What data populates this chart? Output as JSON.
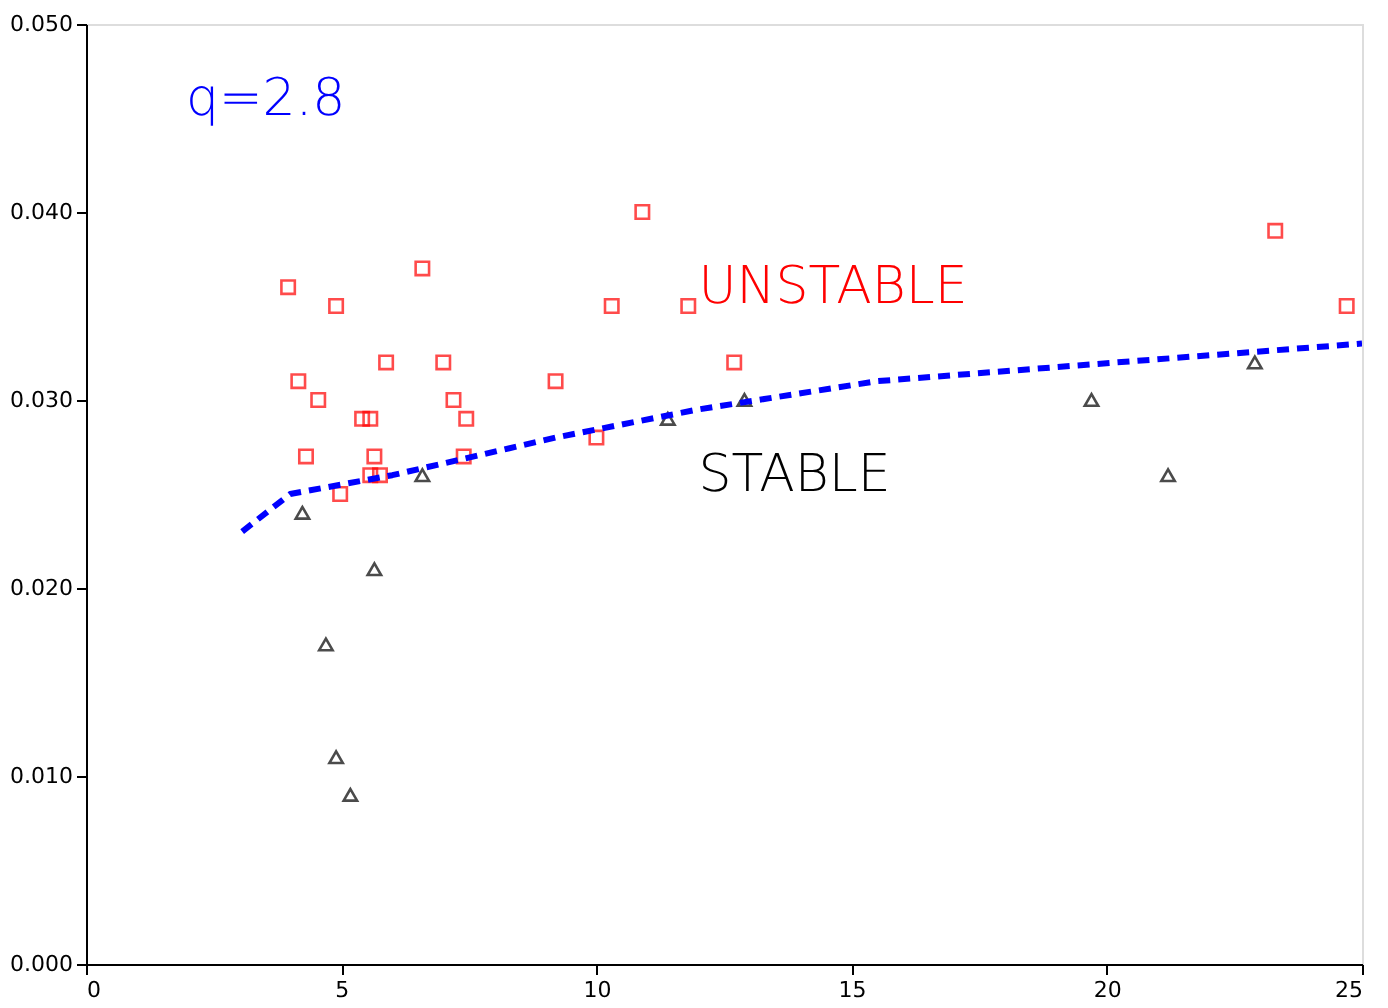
{
  "chart_data": {
    "type": "scatter",
    "xlim": [
      0,
      25
    ],
    "ylim": [
      0,
      0.05
    ],
    "xticks": [
      0,
      5,
      10,
      15,
      20,
      25
    ],
    "yticks": [
      {
        "value": 0,
        "label": "0.000"
      },
      {
        "value": 0.01,
        "label": "0.010"
      },
      {
        "value": 0.02,
        "label": "0.020"
      },
      {
        "value": 0.03,
        "label": "0.030"
      },
      {
        "value": 0.04,
        "label": "0.040"
      },
      {
        "value": 0.05,
        "label": "0.050"
      }
    ],
    "grid": false,
    "annotations": [
      "q=2.8",
      "UNSTABLE",
      "STABLE"
    ],
    "series": [
      {
        "marker": "square",
        "color": "#ff0000",
        "x": [
          3.96,
          4.16,
          4.31,
          4.55,
          4.9,
          4.98,
          5.41,
          5.57,
          5.65,
          5.57,
          5.76,
          5.88,
          6.59,
          7.0,
          7.2,
          7.45,
          7.4,
          9.2,
          10.0,
          10.3,
          10.9,
          11.8,
          12.7,
          23.3,
          24.7
        ],
        "values": [
          0.036,
          0.031,
          0.027,
          0.03,
          0.035,
          0.025,
          0.029,
          0.029,
          0.027,
          0.026,
          0.026,
          0.032,
          0.037,
          0.032,
          0.03,
          0.029,
          0.027,
          0.031,
          0.028,
          0.035,
          0.04,
          0.035,
          0.032,
          0.039,
          0.035
        ]
      },
      {
        "marker": "triangle",
        "color": "#000000",
        "x": [
          4.24,
          5.65,
          4.7,
          4.9,
          5.18,
          6.59,
          11.4,
          12.9,
          19.7,
          21.2,
          22.9
        ],
        "values": [
          0.024,
          0.021,
          0.017,
          0.011,
          0.009,
          0.026,
          0.029,
          0.03,
          0.03,
          0.026,
          0.032
        ]
      },
      {
        "type": "line",
        "line_style": "dashed",
        "marker": "none",
        "color": "#0000ff",
        "x": [
          3.06,
          4.0,
          6.0,
          9.2,
          12.0,
          15.5,
          20.2,
          25.0
        ],
        "values": [
          0.023,
          0.025,
          0.026,
          0.028,
          0.0295,
          0.031,
          0.032,
          0.033
        ]
      }
    ]
  }
}
